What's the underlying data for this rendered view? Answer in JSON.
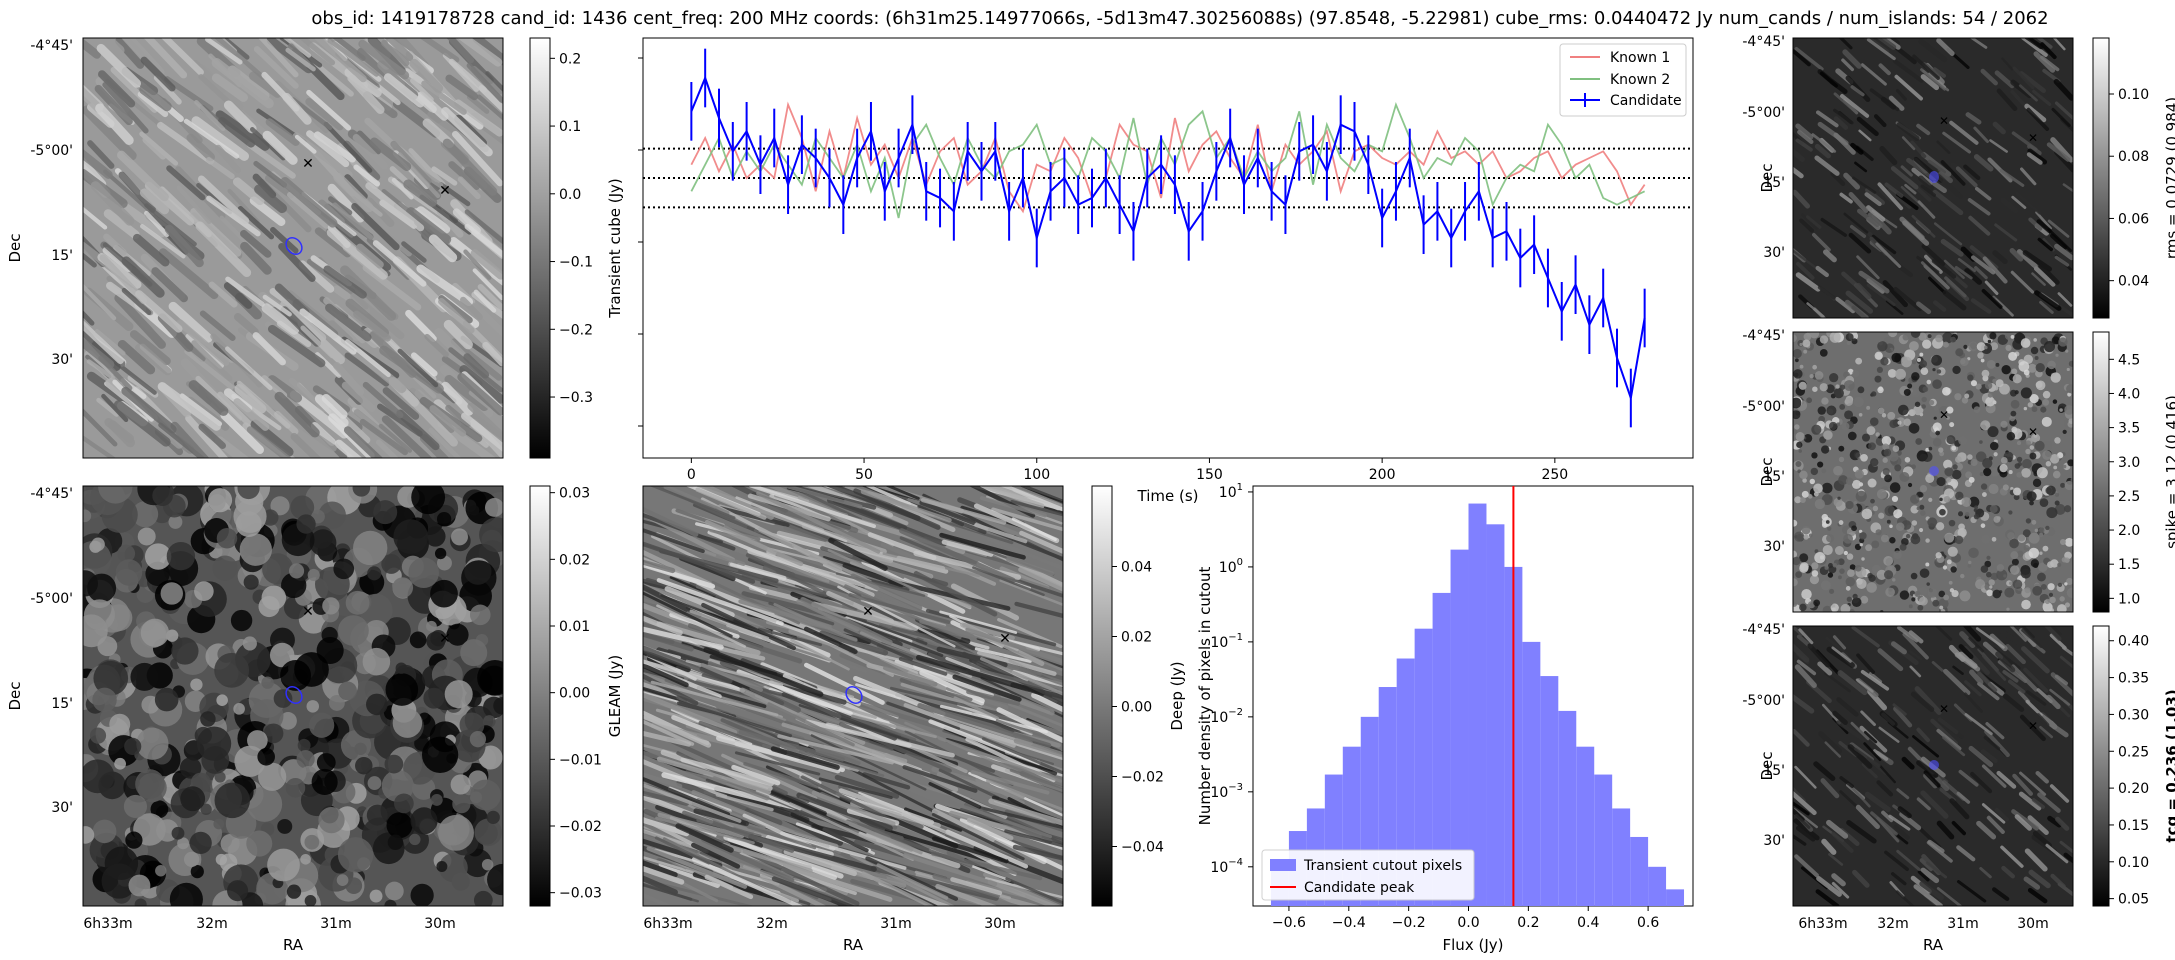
{
  "figure": {
    "title": "obs_id: 1419178728 cand_id: 1436 cent_freq: 200 MHz coords: (6h31m25.14977066s, -5d13m47.30256088s) (97.8548, -5.22981) cube_rms: 0.0440472 Jy num_cands / num_islands: 54 / 2062"
  },
  "ra_ticks": [
    "6h33m",
    "32m",
    "31m",
    "30m"
  ],
  "dec_ticks": [
    "-4°45'",
    "-5°00'",
    "15'",
    "30'"
  ],
  "axis_labels": {
    "ra": "RA",
    "dec": "Dec"
  },
  "colors": {
    "known1": "#f08080",
    "known2": "#80c080",
    "candidate": "#0000ff",
    "hist": "#8080ff",
    "peak": "#ff0000"
  },
  "panels": {
    "transient": {
      "cbar_label": "Transient cube (Jy)",
      "cbar_ticks": [
        "0.2",
        "0.1",
        "0.0",
        "−0.1",
        "−0.2",
        "−0.3"
      ],
      "cmin": -0.39,
      "cmax": 0.23
    },
    "gleam": {
      "cbar_label": "GLEAM (Jy)",
      "cbar_ticks": [
        "0.03",
        "0.02",
        "0.01",
        "0.00",
        "−0.01",
        "−0.02",
        "−0.03"
      ],
      "cmin": -0.032,
      "cmax": 0.031
    },
    "deep": {
      "cbar_label": "Deep (Jy)",
      "cbar_ticks": [
        "0.04",
        "0.02",
        "0.00",
        "−0.02",
        "−0.04"
      ],
      "cmin": -0.057,
      "cmax": 0.063
    },
    "rms": {
      "cbar_label": "rms = 0.0729 (0.984)",
      "cbar_ticks": [
        "0.10",
        "0.08",
        "0.06",
        "0.04"
      ],
      "cmin": 0.028,
      "cmax": 0.118
    },
    "spike": {
      "cbar_label": "spike = 3.12 (0.416)",
      "cbar_ticks": [
        "4.5",
        "4.0",
        "3.5",
        "3.0",
        "2.5",
        "2.0",
        "1.5",
        "1.0"
      ],
      "cmin": 0.8,
      "cmax": 4.9
    },
    "tcg": {
      "cbar_label": "tcg = 0.236 (1.03)",
      "cbar_ticks": [
        "0.40",
        "0.35",
        "0.30",
        "0.25",
        "0.20",
        "0.15",
        "0.10",
        "0.05"
      ],
      "cmin": 0.04,
      "cmax": 0.42
    }
  },
  "chart_data": [
    {
      "type": "line",
      "title": "",
      "xlabel": "Time (s)",
      "ylabel": "",
      "xlim": [
        -14,
        290
      ],
      "ylim": [
        -0.42,
        0.21
      ],
      "xticks": [
        0,
        50,
        100,
        150,
        200,
        250
      ],
      "hlines": [
        0.044,
        0.0,
        -0.044
      ],
      "legend": [
        "Known 1",
        "Known 2",
        "Candidate"
      ],
      "legend_loc": "top-right",
      "time": [
        0,
        4,
        8,
        12,
        16,
        20,
        24,
        28,
        32,
        36,
        40,
        44,
        48,
        52,
        56,
        60,
        64,
        68,
        72,
        76,
        80,
        84,
        88,
        92,
        96,
        100,
        104,
        108,
        112,
        116,
        120,
        124,
        128,
        132,
        136,
        140,
        144,
        148,
        152,
        156,
        160,
        164,
        168,
        172,
        176,
        180,
        184,
        188,
        192,
        196,
        200,
        204,
        208,
        212,
        216,
        220,
        224,
        228,
        232,
        236,
        240,
        244,
        248,
        252,
        256,
        260,
        264,
        268,
        272,
        276
      ],
      "series": [
        {
          "name": "Known 1",
          "values": [
            0.02,
            0.06,
            0.01,
            0.05,
            0.0,
            0.02,
            0.0,
            0.11,
            0.06,
            -0.02,
            0.07,
            0.0,
            0.09,
            0.02,
            0.05,
            0.0,
            0.06,
            -0.01,
            0.04,
            0.06,
            -0.01,
            0.01,
            0.06,
            -0.02,
            -0.05,
            0.02,
            0.01,
            0.06,
            0.03,
            -0.03,
            0.0,
            0.08,
            0.05,
            0.04,
            -0.03,
            0.09,
            0.01,
            0.05,
            0.07,
            0.03,
            0.0,
            0.08,
            -0.02,
            0.05,
            0.02,
            0.04,
            0.07,
            -0.02,
            0.04,
            0.05,
            0.03,
            0.02,
            0.04,
            0.02,
            0.07,
            0.03,
            0.04,
            0.02,
            0.04,
            0.0,
            0.01,
            0.03,
            0.04,
            0.0,
            0.02,
            0.03,
            0.04,
            0.01,
            -0.04,
            -0.01
          ]
        },
        {
          "name": "Known 2",
          "values": [
            -0.02,
            0.02,
            0.06,
            0.0,
            0.04,
            0.01,
            0.05,
            0.02,
            -0.01,
            0.06,
            0.03,
            0.0,
            0.05,
            -0.02,
            0.03,
            -0.06,
            0.05,
            0.08,
            0.03,
            -0.01,
            0.06,
            0.02,
            0.0,
            0.04,
            0.05,
            0.08,
            0.02,
            0.03,
            0.0,
            0.06,
            0.04,
            0.0,
            0.09,
            -0.01,
            0.06,
            0.02,
            0.08,
            0.1,
            0.03,
            0.06,
            0.0,
            0.04,
            0.01,
            0.03,
            0.1,
            -0.01,
            0.08,
            0.03,
            0.01,
            0.05,
            0.04,
            0.11,
            0.06,
            0.0,
            0.03,
            0.02,
            0.06,
            0.04,
            -0.04,
            0.0,
            0.02,
            0.01,
            0.08,
            0.05,
            0.0,
            0.02,
            -0.03,
            -0.04,
            -0.03,
            -0.02
          ]
        },
        {
          "name": "Candidate",
          "values": [
            0.1,
            0.15,
            0.09,
            0.04,
            0.07,
            0.02,
            0.06,
            -0.01,
            0.05,
            0.03,
            0.0,
            -0.04,
            0.03,
            0.07,
            -0.02,
            0.03,
            0.08,
            -0.02,
            -0.03,
            -0.05,
            0.04,
            0.01,
            0.04,
            -0.05,
            0.0,
            -0.09,
            -0.02,
            0.0,
            -0.04,
            -0.03,
            0.0,
            -0.04,
            -0.08,
            0.0,
            0.02,
            -0.01,
            -0.08,
            -0.05,
            0.01,
            0.06,
            -0.01,
            0.03,
            -0.02,
            -0.04,
            0.04,
            0.05,
            0.01,
            0.08,
            0.07,
            0.02,
            -0.06,
            -0.02,
            0.03,
            -0.07,
            -0.05,
            -0.09,
            -0.05,
            -0.02,
            -0.09,
            -0.08,
            -0.12,
            -0.1,
            -0.15,
            -0.2,
            -0.16,
            -0.22,
            -0.18,
            -0.27,
            -0.33,
            -0.21
          ]
        }
      ]
    },
    {
      "type": "bar",
      "title": "",
      "xlabel": "Flux (Jy)",
      "ylabel": "Number density of pixels in cutout",
      "yscale": "log",
      "xlim": [
        -0.72,
        0.75
      ],
      "ylim": [
        3e-05,
        12
      ],
      "xticks": [
        "−0.6",
        "−0.4",
        "−0.2",
        "0.0",
        "0.2",
        "0.4",
        "0.6"
      ],
      "yticks": [
        "10^1",
        "10^0",
        "10^-1",
        "10^-2",
        "10^-3",
        "10^-4"
      ],
      "bin_edges": [
        -0.66,
        -0.6,
        -0.54,
        -0.48,
        -0.42,
        -0.36,
        -0.3,
        -0.24,
        -0.18,
        -0.12,
        -0.06,
        0.0,
        0.06,
        0.12,
        0.18,
        0.24,
        0.3,
        0.36,
        0.42,
        0.48,
        0.54,
        0.6,
        0.66,
        0.72
      ],
      "values": [
        0.0001,
        0.0003,
        0.0006,
        0.0017,
        0.004,
        0.01,
        0.025,
        0.06,
        0.15,
        0.45,
        1.7,
        7.0,
        3.7,
        1.0,
        0.1,
        0.035,
        0.012,
        0.004,
        0.0017,
        0.0006,
        0.00025,
        0.0001,
        5e-05
      ],
      "candidate_peak": 0.15,
      "legend": [
        "Transient cutout pixels",
        "Candidate peak"
      ],
      "legend_loc": "bottom-left"
    }
  ]
}
